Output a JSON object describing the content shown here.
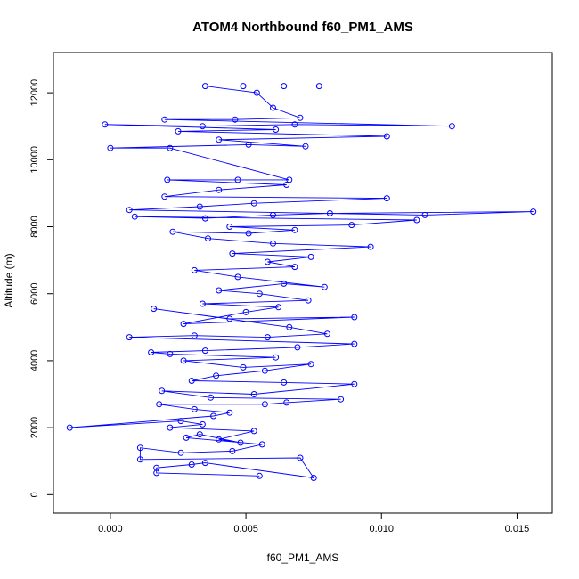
{
  "chart_data": {
    "type": "scatter",
    "title": "ATOM4 Northbound f60_PM1_AMS",
    "xlabel": "f60_PM1_AMS",
    "ylabel": "Altitude (m)",
    "xlim": [
      -0.0021,
      0.0163
    ],
    "ylim": [
      -550,
      13200
    ],
    "x_ticks": [
      0.0,
      0.005,
      0.01,
      0.015
    ],
    "x_tick_labels": [
      "0.000",
      "0.005",
      "0.010",
      "0.015"
    ],
    "y_ticks": [
      0,
      2000,
      4000,
      6000,
      8000,
      10000,
      12000
    ],
    "y_tick_labels": [
      "0",
      "2000",
      "4000",
      "6000",
      "8000",
      "10000",
      "12000"
    ],
    "grid": false,
    "legend": "none",
    "marker": "open-circle",
    "line": true,
    "series": [
      {
        "color": "#0000ff",
        "points": [
          [
            0.0055,
            560
          ],
          [
            0.0017,
            650
          ],
          [
            0.0017,
            800
          ],
          [
            0.003,
            900
          ],
          [
            0.0035,
            950
          ],
          [
            0.0075,
            500
          ],
          [
            0.007,
            1100
          ],
          [
            0.0011,
            1050
          ],
          [
            0.0011,
            1400
          ],
          [
            0.0026,
            1250
          ],
          [
            0.0045,
            1300
          ],
          [
            0.0056,
            1500
          ],
          [
            0.0028,
            1700
          ],
          [
            0.0033,
            1800
          ],
          [
            0.0048,
            1550
          ],
          [
            0.004,
            1650
          ],
          [
            0.0053,
            1900
          ],
          [
            0.0022,
            2000
          ],
          [
            0.0034,
            2100
          ],
          [
            0.0026,
            2200
          ],
          [
            -0.0015,
            2000
          ],
          [
            0.0038,
            2350
          ],
          [
            0.0044,
            2450
          ],
          [
            0.0031,
            2550
          ],
          [
            0.0018,
            2700
          ],
          [
            0.0057,
            2700
          ],
          [
            0.0065,
            2750
          ],
          [
            0.0085,
            2850
          ],
          [
            0.0037,
            2900
          ],
          [
            0.0019,
            3100
          ],
          [
            0.0053,
            3000
          ],
          [
            0.009,
            3300
          ],
          [
            0.0064,
            3350
          ],
          [
            0.003,
            3400
          ],
          [
            0.0039,
            3550
          ],
          [
            0.0057,
            3700
          ],
          [
            0.0074,
            3900
          ],
          [
            0.0049,
            3800
          ],
          [
            0.0027,
            4000
          ],
          [
            0.0061,
            4100
          ],
          [
            0.0022,
            4200
          ],
          [
            0.0015,
            4250
          ],
          [
            0.0035,
            4300
          ],
          [
            0.0069,
            4400
          ],
          [
            0.009,
            4500
          ],
          [
            0.0007,
            4700
          ],
          [
            0.0031,
            4750
          ],
          [
            0.0058,
            4700
          ],
          [
            0.008,
            4800
          ],
          [
            0.0066,
            5000
          ],
          [
            0.0016,
            5550
          ],
          [
            0.0044,
            5250
          ],
          [
            0.009,
            5300
          ],
          [
            0.0027,
            5100
          ],
          [
            0.005,
            5450
          ],
          [
            0.0062,
            5600
          ],
          [
            0.0034,
            5700
          ],
          [
            0.0073,
            5800
          ],
          [
            0.0055,
            6000
          ],
          [
            0.004,
            6100
          ],
          [
            0.0064,
            6300
          ],
          [
            0.0079,
            6200
          ],
          [
            0.0047,
            6500
          ],
          [
            0.0031,
            6700
          ],
          [
            0.0068,
            6800
          ],
          [
            0.0058,
            6950
          ],
          [
            0.0074,
            7100
          ],
          [
            0.0045,
            7200
          ],
          [
            0.0096,
            7400
          ],
          [
            0.006,
            7500
          ],
          [
            0.0036,
            7650
          ],
          [
            0.0023,
            7850
          ],
          [
            0.0051,
            7800
          ],
          [
            0.0068,
            7900
          ],
          [
            0.0044,
            8000
          ],
          [
            0.0089,
            8050
          ],
          [
            0.0113,
            8200
          ],
          [
            0.0009,
            8300
          ],
          [
            0.0035,
            8250
          ],
          [
            0.006,
            8350
          ],
          [
            0.0081,
            8400
          ],
          [
            0.0156,
            8450
          ],
          [
            0.0116,
            8350
          ],
          [
            0.0007,
            8500
          ],
          [
            0.0033,
            8600
          ],
          [
            0.0053,
            8700
          ],
          [
            0.0102,
            8850
          ],
          [
            0.002,
            8900
          ],
          [
            0.004,
            9100
          ],
          [
            0.0065,
            9250
          ],
          [
            0.0021,
            9400
          ],
          [
            0.0047,
            9400
          ],
          [
            0.0066,
            9400
          ],
          [
            0.0022,
            10350
          ],
          [
            0.0,
            10350
          ],
          [
            0.0051,
            10450
          ],
          [
            0.0072,
            10400
          ],
          [
            0.004,
            10600
          ],
          [
            0.0102,
            10700
          ],
          [
            0.0025,
            10850
          ],
          [
            0.0061,
            10900
          ],
          [
            -0.0002,
            11050
          ],
          [
            0.0034,
            11000
          ],
          [
            0.0068,
            11050
          ],
          [
            0.0126,
            11000
          ],
          [
            0.002,
            11200
          ],
          [
            0.0046,
            11200
          ],
          [
            0.007,
            11250
          ],
          [
            0.006,
            11550
          ],
          [
            0.0054,
            12000
          ],
          [
            0.0035,
            12200
          ],
          [
            0.0049,
            12200
          ],
          [
            0.0064,
            12200
          ],
          [
            0.0077,
            12200
          ]
        ]
      }
    ]
  }
}
